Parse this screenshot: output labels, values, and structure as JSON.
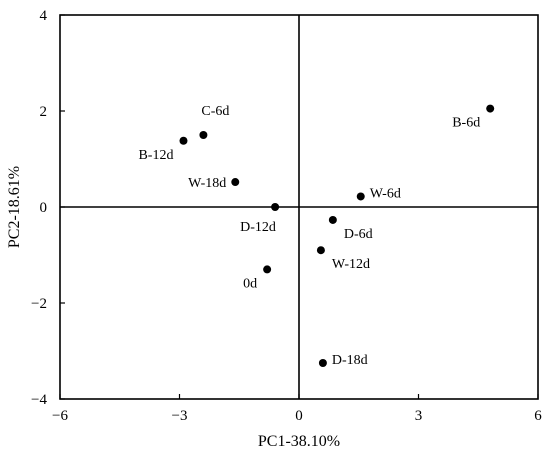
{
  "chart_data": {
    "type": "scatter",
    "xlabel": "PC1-38.10%",
    "ylabel": "PC2-18.61%",
    "xlim": [
      -6,
      6
    ],
    "ylim": [
      -4,
      4
    ],
    "xticks": [
      -6,
      -3,
      0,
      3,
      6
    ],
    "yticks": [
      -4,
      -2,
      0,
      2,
      4
    ],
    "zero_lines": true,
    "grid": false,
    "points": [
      {
        "label": "B-6d",
        "x": 4.8,
        "y": 2.05,
        "label_pos": "lower-left"
      },
      {
        "label": "C-6d",
        "x": -2.4,
        "y": 1.5,
        "label_pos": "upper-right"
      },
      {
        "label": "B-12d",
        "x": -2.9,
        "y": 1.38,
        "label_pos": "lower-left"
      },
      {
        "label": "W-18d",
        "x": -1.6,
        "y": 0.52,
        "label_pos": "left"
      },
      {
        "label": "W-6d",
        "x": 1.55,
        "y": 0.22,
        "label_pos": "right"
      },
      {
        "label": "D-12d",
        "x": -0.6,
        "y": 0.0,
        "label_pos": "below"
      },
      {
        "label": "D-6d",
        "x": 0.85,
        "y": -0.27,
        "label_pos": "lower-right"
      },
      {
        "label": "W-12d",
        "x": 0.55,
        "y": -0.9,
        "label_pos": "lower-right"
      },
      {
        "label": "0d",
        "x": -0.8,
        "y": -1.3,
        "label_pos": "lower-left"
      },
      {
        "label": "D-18d",
        "x": 0.6,
        "y": -3.25,
        "label_pos": "right"
      }
    ]
  }
}
